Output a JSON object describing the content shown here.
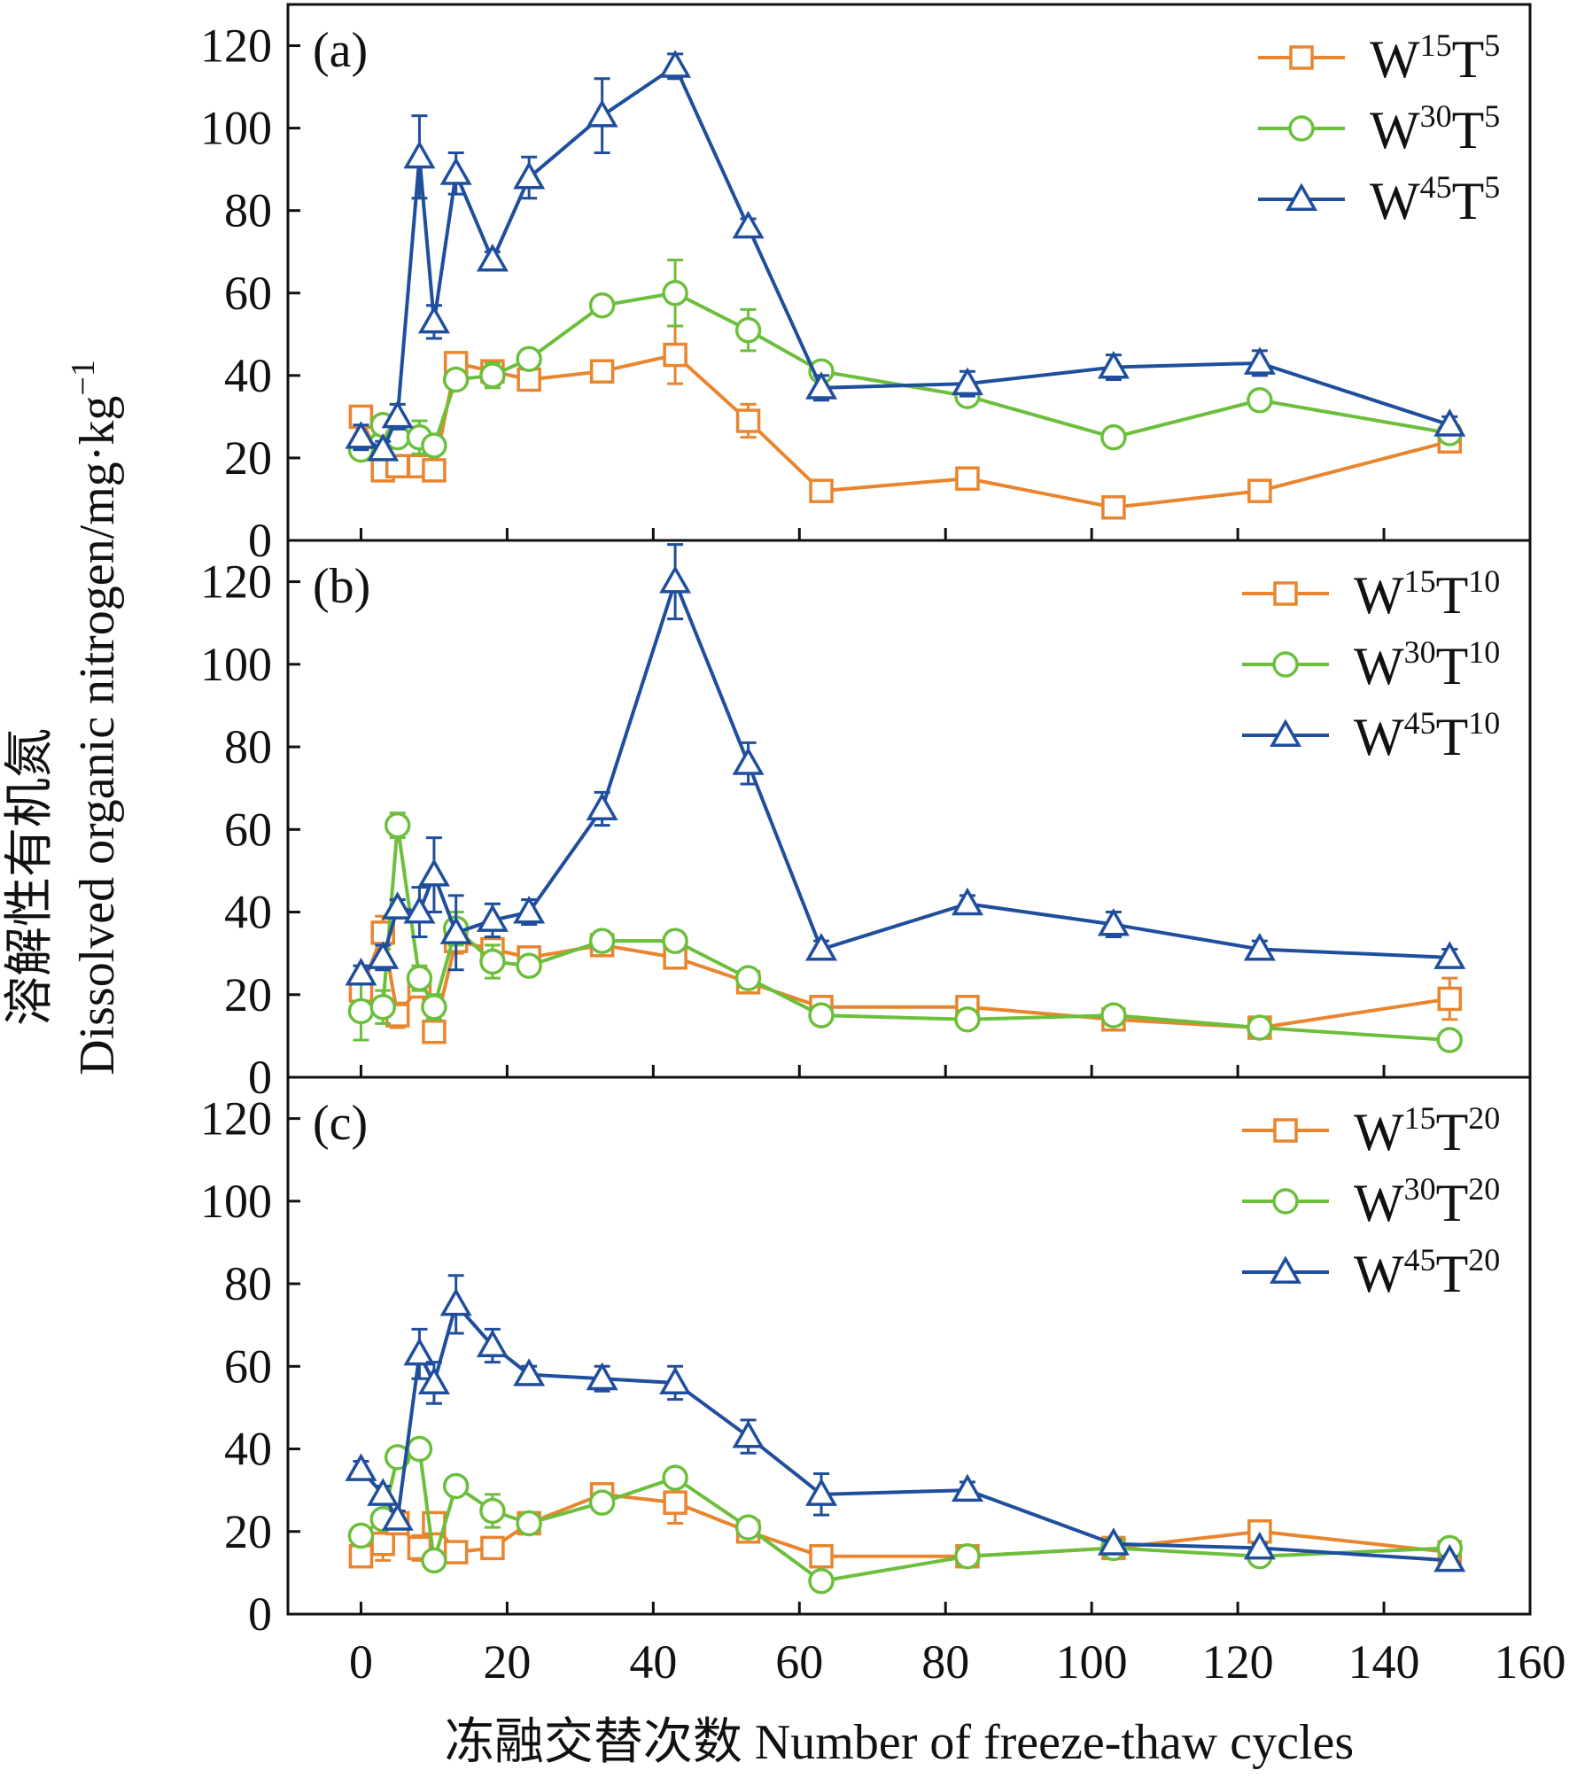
{
  "chart_data": {
    "type": "line",
    "ylabel_cn": "溶解性有机氮",
    "ylabel_en": "Dissolved organic nitrogen/mg·kg",
    "ylabel_exp": "−1",
    "xlabel": "冻融交替次数 Number of freeze-thaw cycles",
    "xlim": [
      -10,
      160
    ],
    "ylim": [
      0,
      130
    ],
    "x_ticks": [
      "0",
      "20",
      "40",
      "60",
      "80",
      "100",
      "120",
      "140",
      "160"
    ],
    "y_ticks": [
      "0",
      "20",
      "40",
      "60",
      "80",
      "100",
      "120"
    ],
    "x": [
      0,
      3,
      5,
      8,
      10,
      13,
      18,
      23,
      33,
      43,
      53,
      63,
      83,
      103,
      123,
      149
    ],
    "colors": {
      "orange": "#e8852e",
      "green": "#6cbf3c",
      "blue": "#1f4e9c"
    },
    "panels": [
      {
        "label": "(a)",
        "series": [
          {
            "name": "W",
            "sup1": "15",
            "mid": "T",
            "sup2": "5",
            "marker": "square",
            "color": "#e8852e",
            "values": [
              30,
              17,
              18,
              18,
              17,
              43,
              41,
              39,
              41,
              45,
              29,
              12,
              15,
              8,
              12,
              24
            ],
            "errors": [
              2,
              1.5,
              1,
              1,
              2,
              2,
              2,
              1.5,
              1,
              7,
              4,
              1,
              1,
              1,
              1,
              1
            ]
          },
          {
            "name": "W",
            "sup1": "30",
            "mid": "T",
            "sup2": "5",
            "marker": "circle",
            "color": "#6cbf3c",
            "values": [
              22,
              28,
              25,
              25,
              23,
              39,
              40,
              44,
              57,
              60,
              51,
              41,
              35,
              25,
              34,
              26
            ],
            "errors": [
              1.5,
              1.5,
              1.5,
              4,
              2,
              2,
              3,
              1.5,
              1,
              8,
              5,
              1.5,
              1.5,
              1,
              1,
              1
            ]
          },
          {
            "name": "W",
            "sup1": "45",
            "mid": "T",
            "sup2": "5",
            "marker": "triangle",
            "color": "#1f4e9c",
            "values": [
              25,
              22,
              30,
              93,
              53,
              89,
              68,
              88,
              103,
              115,
              76,
              37,
              38,
              42,
              43,
              28
            ],
            "errors": [
              3,
              2,
              3,
              10,
              4,
              5,
              2,
              5,
              9,
              3,
              2,
              3,
              3,
              3,
              3,
              2
            ]
          }
        ]
      },
      {
        "label": "(b)",
        "series": [
          {
            "name": "W",
            "sup1": "15",
            "mid": "T",
            "sup2": "10",
            "marker": "square",
            "color": "#e8852e",
            "values": [
              21,
              35,
              15,
              22,
              11,
              33,
              31,
              29,
              32,
              29,
              23,
              17,
              17,
              14,
              12,
              19
            ],
            "errors": [
              3,
              4,
              3,
              2,
              1.5,
              3,
              2,
              1.5,
              1,
              1.5,
              1,
              1,
              1,
              1,
              1,
              5
            ]
          },
          {
            "name": "W",
            "sup1": "30",
            "mid": "T",
            "sup2": "10",
            "marker": "circle",
            "color": "#6cbf3c",
            "values": [
              16,
              17,
              61,
              24,
              17,
              36,
              28,
              27,
              33,
              33,
              24,
              15,
              14,
              15,
              12,
              9
            ],
            "errors": [
              7,
              4,
              3,
              3,
              3,
              4,
              4,
              1.5,
              1,
              1,
              1,
              1,
              1,
              1.5,
              1,
              1
            ]
          },
          {
            "name": "W",
            "sup1": "45",
            "mid": "T",
            "sup2": "10",
            "marker": "triangle",
            "color": "#1f4e9c",
            "values": [
              25,
              29,
              41,
              40,
              49,
              35,
              38,
              40,
              65,
              120,
              76,
              31,
              42,
              37,
              31,
              29
            ],
            "errors": [
              2,
              3,
              2,
              6,
              9,
              9,
              4,
              3,
              4,
              9,
              5,
              2,
              2,
              3,
              2,
              2
            ]
          }
        ]
      },
      {
        "label": "(c)",
        "series": [
          {
            "name": "W",
            "sup1": "15",
            "mid": "T",
            "sup2": "20",
            "marker": "square",
            "color": "#e8852e",
            "values": [
              14,
              17,
              22,
              16,
              22,
              15,
              16,
              22,
              29,
              27,
              20,
              14,
              14,
              16,
              20,
              15
            ],
            "errors": [
              1.5,
              4,
              2,
              3,
              2,
              1,
              1,
              1,
              1.5,
              5,
              2,
              1,
              1,
              1,
              1,
              1
            ]
          },
          {
            "name": "W",
            "sup1": "30",
            "mid": "T",
            "sup2": "20",
            "marker": "circle",
            "color": "#6cbf3c",
            "values": [
              19,
              23,
              38,
              40,
              13,
              31,
              25,
              22,
              27,
              33,
              21,
              8,
              14,
              16,
              14,
              16
            ],
            "errors": [
              1,
              2,
              1.5,
              2,
              1,
              2,
              4,
              1.5,
              1,
              2,
              2,
              1,
              1,
              1,
              1,
              1
            ]
          },
          {
            "name": "W",
            "sup1": "45",
            "mid": "T",
            "sup2": "20",
            "marker": "triangle",
            "color": "#1f4e9c",
            "values": [
              35,
              29,
              23,
              63,
              56,
              75,
              65,
              58,
              57,
              56,
              43,
              29,
              30,
              17,
              16,
              13
            ],
            "errors": [
              2,
              2,
              2,
              6,
              5,
              7,
              4,
              2,
              3,
              4,
              4,
              5,
              2,
              1,
              1,
              1
            ]
          }
        ]
      }
    ]
  }
}
